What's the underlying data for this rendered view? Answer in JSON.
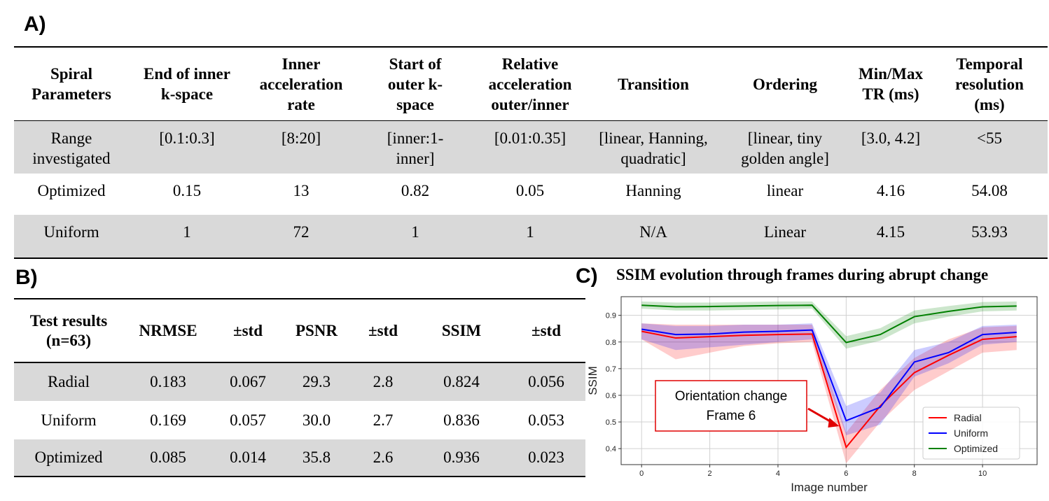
{
  "panel_labels": {
    "a": "A)",
    "b": "B)",
    "c": "C)"
  },
  "table_a": {
    "headers": [
      [
        "Spiral",
        "Parameters"
      ],
      [
        "End of inner",
        "k-space"
      ],
      [
        "Inner",
        "acceleration",
        "rate"
      ],
      [
        "Start of",
        "outer k-",
        "space"
      ],
      [
        "Relative",
        "acceleration",
        "outer/inner"
      ],
      [
        "Transition"
      ],
      [
        "Ordering"
      ],
      [
        "Min/Max",
        "TR (ms)"
      ],
      [
        "Temporal",
        "resolution",
        "(ms)"
      ]
    ],
    "rows": [
      [
        [
          "Range",
          "investigated"
        ],
        [
          "[0.1:0.3]"
        ],
        [
          "[8:20]"
        ],
        [
          "[inner:1-",
          "inner]"
        ],
        [
          "[0.01:0.35]"
        ],
        [
          "[linear, Hanning,",
          "quadratic]"
        ],
        [
          "[linear, tiny",
          "golden angle]"
        ],
        [
          "[3.0, 4.2]"
        ],
        [
          "<55"
        ]
      ],
      [
        [
          "Optimized"
        ],
        [
          "0.15"
        ],
        [
          "13"
        ],
        [
          "0.82"
        ],
        [
          "0.05"
        ],
        [
          "Hanning"
        ],
        [
          "linear"
        ],
        [
          "4.16"
        ],
        [
          "54.08"
        ]
      ],
      [
        [
          "Uniform"
        ],
        [
          "1"
        ],
        [
          "72"
        ],
        [
          "1"
        ],
        [
          "1"
        ],
        [
          "N/A"
        ],
        [
          "Linear"
        ],
        [
          "4.15"
        ],
        [
          "53.93"
        ]
      ]
    ]
  },
  "table_b": {
    "headers": [
      [
        "Test results",
        "(n=63)"
      ],
      [
        "NRMSE"
      ],
      [
        "±std"
      ],
      [
        "PSNR"
      ],
      [
        "±std"
      ],
      [
        "SSIM"
      ],
      [
        "±std"
      ]
    ],
    "rows": [
      [
        "Radial",
        "0.183",
        "0.067",
        "29.3",
        "2.8",
        "0.824",
        "0.056"
      ],
      [
        "Uniform",
        "0.169",
        "0.057",
        "30.0",
        "2.7",
        "0.836",
        "0.053"
      ],
      [
        "Optimized",
        "0.085",
        "0.014",
        "35.8",
        "2.6",
        "0.936",
        "0.023"
      ]
    ]
  },
  "chart_data": {
    "type": "line",
    "title": "SSIM evolution through frames during abrupt change",
    "xlabel": "Image number",
    "ylabel": "SSIM",
    "xlim": [
      -0.6,
      11.6
    ],
    "ylim": [
      0.34,
      0.97
    ],
    "xticks": [
      0,
      2,
      4,
      6,
      8,
      10
    ],
    "yticks": [
      0.4,
      0.5,
      0.6,
      0.7,
      0.8,
      0.9
    ],
    "grid": true,
    "legend_position": "lower-right",
    "x": [
      0,
      1,
      2,
      3,
      4,
      5,
      6,
      7,
      8,
      9,
      10,
      11
    ],
    "series": [
      {
        "name": "Radial",
        "color": "#ff0000",
        "values": [
          0.84,
          0.815,
          0.82,
          0.825,
          0.828,
          0.83,
          0.405,
          0.56,
          0.685,
          0.75,
          0.81,
          0.82
        ],
        "lower": [
          0.81,
          0.735,
          0.76,
          0.785,
          0.795,
          0.8,
          0.345,
          0.5,
          0.62,
          0.69,
          0.76,
          0.77
        ],
        "upper": [
          0.87,
          0.865,
          0.865,
          0.865,
          0.865,
          0.865,
          0.46,
          0.62,
          0.74,
          0.81,
          0.855,
          0.86
        ]
      },
      {
        "name": "Uniform",
        "color": "#0000ff",
        "values": [
          0.848,
          0.828,
          0.83,
          0.837,
          0.84,
          0.845,
          0.505,
          0.555,
          0.725,
          0.76,
          0.828,
          0.836
        ],
        "lower": [
          0.81,
          0.77,
          0.78,
          0.79,
          0.8,
          0.81,
          0.45,
          0.49,
          0.67,
          0.72,
          0.79,
          0.8
        ],
        "upper": [
          0.87,
          0.86,
          0.86,
          0.865,
          0.865,
          0.87,
          0.56,
          0.61,
          0.77,
          0.8,
          0.86,
          0.865
        ]
      },
      {
        "name": "Optimized",
        "color": "#008000",
        "values": [
          0.938,
          0.932,
          0.933,
          0.935,
          0.937,
          0.938,
          0.798,
          0.828,
          0.895,
          0.915,
          0.932,
          0.935
        ],
        "lower": [
          0.925,
          0.918,
          0.918,
          0.92,
          0.922,
          0.925,
          0.775,
          0.805,
          0.87,
          0.895,
          0.915,
          0.918
        ],
        "upper": [
          0.952,
          0.948,
          0.948,
          0.95,
          0.952,
          0.952,
          0.822,
          0.852,
          0.918,
          0.935,
          0.95,
          0.952
        ]
      }
    ],
    "annotation": {
      "lines": [
        "Orientation change",
        "Frame 6"
      ],
      "target_x": 6,
      "target_y": 0.5
    }
  }
}
